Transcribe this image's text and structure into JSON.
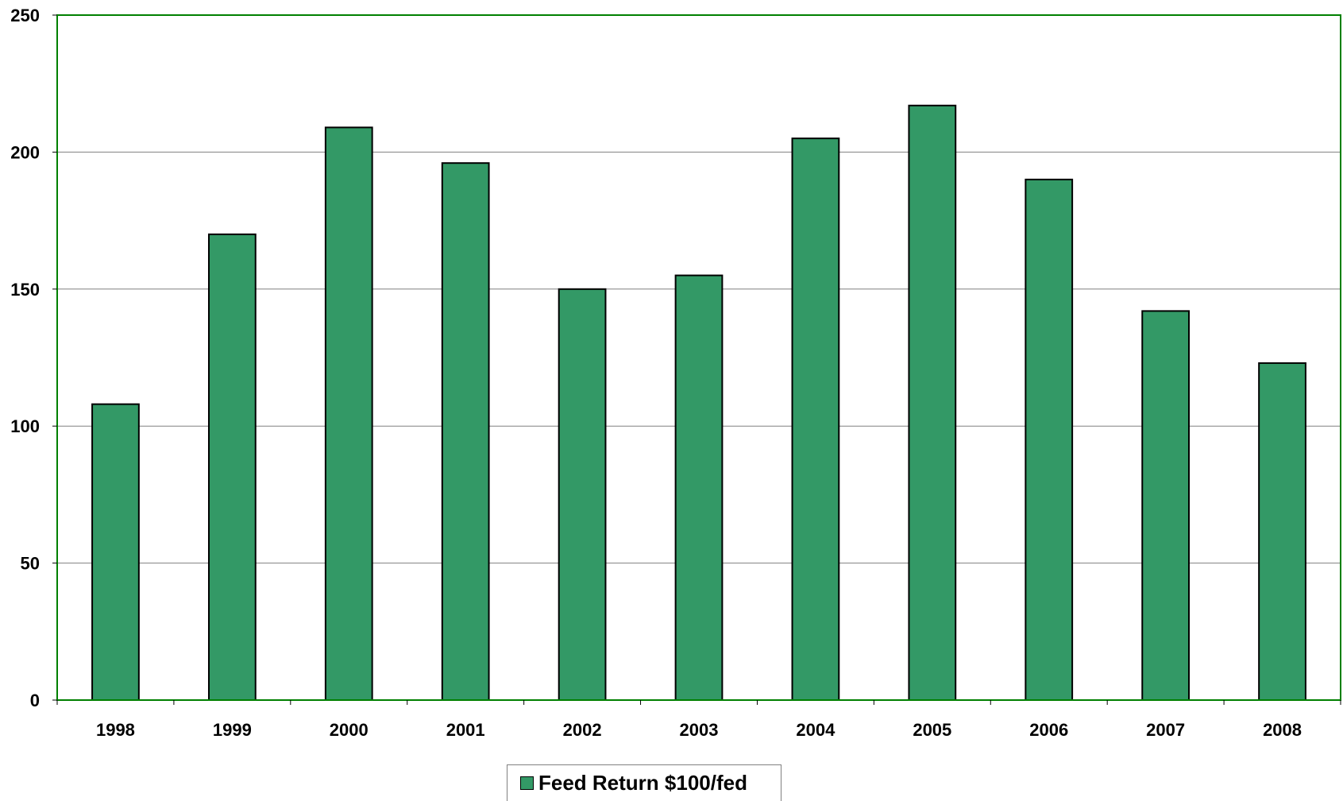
{
  "chart_data": {
    "type": "bar",
    "categories": [
      "1998",
      "1999",
      "2000",
      "2001",
      "2002",
      "2003",
      "2004",
      "2005",
      "2006",
      "2007",
      "2008"
    ],
    "series": [
      {
        "name": "Feed Return $100/fed",
        "values": [
          108,
          170,
          209,
          196,
          150,
          155,
          205,
          217,
          190,
          142,
          123
        ],
        "color": "#339966"
      }
    ],
    "title": "",
    "xlabel": "",
    "ylabel": "",
    "ylim": [
      0,
      250
    ],
    "yticks": [
      0,
      50,
      100,
      150,
      200,
      250
    ],
    "grid": true,
    "legend_position": "bottom",
    "plot_border_color": "#008000",
    "gridline_color": "#808080"
  },
  "legend": {
    "label": "Feed Return $100/fed"
  }
}
